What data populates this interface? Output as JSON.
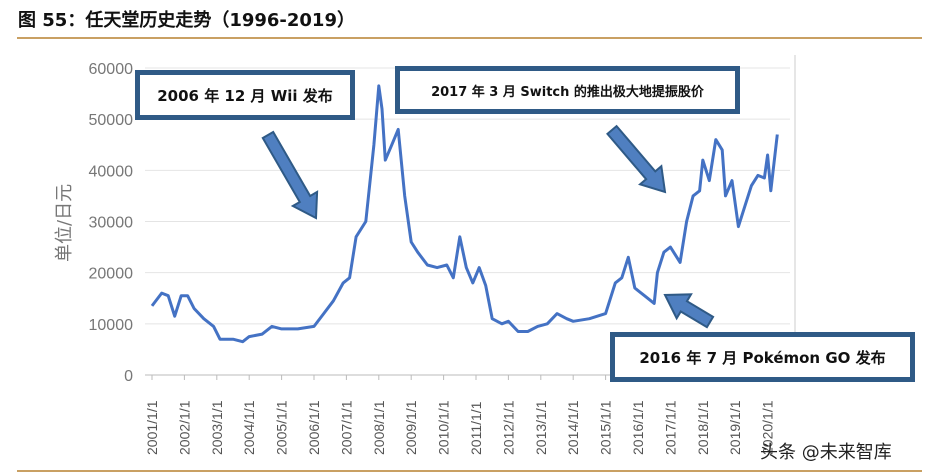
{
  "title": "图 55：任天堂历史走势（1996-2019）",
  "watermark": "头条 @未来智库",
  "chart_data": {
    "type": "line",
    "title": "图 55：任天堂历史走势（1996-2019）",
    "ylabel": "单位/日元",
    "xlabel": "",
    "ylim": [
      0,
      60000
    ],
    "yticks": [
      "0",
      "10000",
      "20000",
      "30000",
      "40000",
      "50000",
      "60000"
    ],
    "xticks": [
      "2001/1/1",
      "2002/1/1",
      "2003/1/1",
      "2004/1/1",
      "2005/1/1",
      "2006/1/1",
      "2007/1/1",
      "2008/1/1",
      "2009/1/1",
      "2010/1/1",
      "2011/1/1",
      "2012/1/1",
      "2013/1/1",
      "2014/1/1",
      "2015/1/1",
      "2016/1/1",
      "2017/1/1",
      "2018/1/1",
      "2019/1/1",
      "2020/1/1"
    ],
    "grid": true,
    "color": "#4472c4",
    "x": [
      2001.0,
      2001.3,
      2001.5,
      2001.7,
      2001.9,
      2002.1,
      2002.3,
      2002.6,
      2002.9,
      2003.1,
      2003.5,
      2003.8,
      2004.0,
      2004.4,
      2004.7,
      2005.0,
      2005.5,
      2006.0,
      2006.3,
      2006.6,
      2006.9,
      2007.1,
      2007.3,
      2007.6,
      2007.85,
      2008.0,
      2008.1,
      2008.2,
      2008.4,
      2008.6,
      2008.8,
      2009.0,
      2009.2,
      2009.5,
      2009.8,
      2010.1,
      2010.3,
      2010.5,
      2010.7,
      2010.9,
      2011.1,
      2011.3,
      2011.5,
      2011.8,
      2012.0,
      2012.3,
      2012.6,
      2012.9,
      2013.2,
      2013.5,
      2013.8,
      2014.0,
      2014.5,
      2015.0,
      2015.3,
      2015.5,
      2015.7,
      2015.9,
      2016.2,
      2016.5,
      2016.6,
      2016.8,
      2017.0,
      2017.3,
      2017.5,
      2017.7,
      2017.9,
      2018.0,
      2018.2,
      2018.4,
      2018.6,
      2018.7,
      2018.9,
      2019.1,
      2019.3,
      2019.5,
      2019.7,
      2019.9,
      2020.0,
      2020.1,
      2020.3
    ],
    "values": [
      13500,
      16000,
      15500,
      11500,
      15500,
      15500,
      13000,
      11000,
      9500,
      7000,
      7000,
      6500,
      7500,
      8000,
      9500,
      9000,
      9000,
      9500,
      12000,
      14500,
      18000,
      19000,
      27000,
      30000,
      45000,
      56500,
      52000,
      42000,
      45000,
      48000,
      35000,
      26000,
      24000,
      21500,
      21000,
      21500,
      19000,
      27000,
      21000,
      18000,
      21000,
      17500,
      11000,
      10000,
      10500,
      8500,
      8500,
      9500,
      10000,
      12000,
      11000,
      10500,
      11000,
      12000,
      18000,
      19000,
      23000,
      17000,
      15500,
      14000,
      20000,
      24000,
      25000,
      22000,
      30000,
      35000,
      36000,
      42000,
      38000,
      46000,
      44000,
      35000,
      38000,
      29000,
      33000,
      37000,
      39000,
      38500,
      43000,
      36000,
      47000
    ],
    "annotations": [
      "2006 年 12 月 Wii 发布",
      "2017 年 3 月 Switch 的推出极大地提振股价",
      "2016 年 7 月 Pokémon GO 发布"
    ]
  }
}
